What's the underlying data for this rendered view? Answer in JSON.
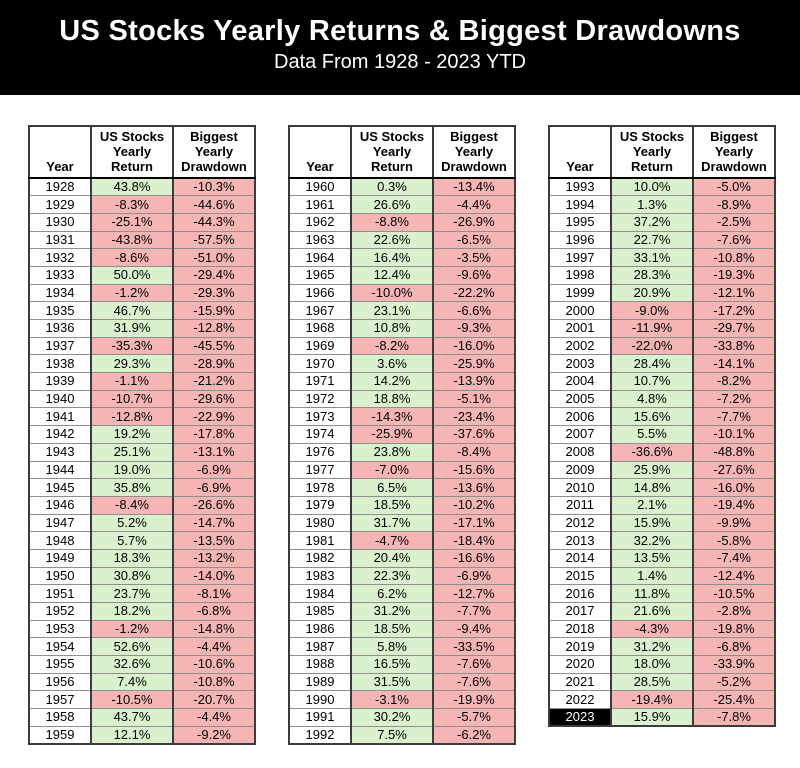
{
  "banner": {
    "title": "US Stocks Yearly Returns & Biggest Drawdowns",
    "subtitle": "Data From 1928 - 2023 YTD"
  },
  "colors": {
    "banner_bg": "#000000",
    "positive_bg": "#d9f2cd",
    "negative_bg": "#f5b5b5",
    "highlight_bg": "#000000",
    "highlight_fg": "#ffffff"
  },
  "chart_data": {
    "type": "table",
    "title": "US Stocks Yearly Returns & Biggest Drawdowns",
    "subtitle": "Data From 1928 - 2023 YTD",
    "columns": [
      "Year",
      "US Stocks Yearly Return",
      "Biggest Yearly Drawdown"
    ],
    "column_headers_multiline": [
      "Year",
      "US Stocks\nYearly\nReturn",
      "Biggest\nYearly\nDrawdown"
    ],
    "highlight_year": "2023",
    "tables": [
      {
        "rows": [
          [
            "1928",
            "43.8%",
            "-10.3%"
          ],
          [
            "1929",
            "-8.3%",
            "-44.6%"
          ],
          [
            "1930",
            "-25.1%",
            "-44.3%"
          ],
          [
            "1931",
            "-43.8%",
            "-57.5%"
          ],
          [
            "1932",
            "-8.6%",
            "-51.0%"
          ],
          [
            "1933",
            "50.0%",
            "-29.4%"
          ],
          [
            "1934",
            "-1.2%",
            "-29.3%"
          ],
          [
            "1935",
            "46.7%",
            "-15.9%"
          ],
          [
            "1936",
            "31.9%",
            "-12.8%"
          ],
          [
            "1937",
            "-35.3%",
            "-45.5%"
          ],
          [
            "1938",
            "29.3%",
            "-28.9%"
          ],
          [
            "1939",
            "-1.1%",
            "-21.2%"
          ],
          [
            "1940",
            "-10.7%",
            "-29.6%"
          ],
          [
            "1941",
            "-12.8%",
            "-22.9%"
          ],
          [
            "1942",
            "19.2%",
            "-17.8%"
          ],
          [
            "1943",
            "25.1%",
            "-13.1%"
          ],
          [
            "1944",
            "19.0%",
            "-6.9%"
          ],
          [
            "1945",
            "35.8%",
            "-6.9%"
          ],
          [
            "1946",
            "-8.4%",
            "-26.6%"
          ],
          [
            "1947",
            "5.2%",
            "-14.7%"
          ],
          [
            "1948",
            "5.7%",
            "-13.5%"
          ],
          [
            "1949",
            "18.3%",
            "-13.2%"
          ],
          [
            "1950",
            "30.8%",
            "-14.0%"
          ],
          [
            "1951",
            "23.7%",
            "-8.1%"
          ],
          [
            "1952",
            "18.2%",
            "-6.8%"
          ],
          [
            "1953",
            "-1.2%",
            "-14.8%"
          ],
          [
            "1954",
            "52.6%",
            "-4.4%"
          ],
          [
            "1955",
            "32.6%",
            "-10.6%"
          ],
          [
            "1956",
            "7.4%",
            "-10.8%"
          ],
          [
            "1957",
            "-10.5%",
            "-20.7%"
          ],
          [
            "1958",
            "43.7%",
            "-4.4%"
          ],
          [
            "1959",
            "12.1%",
            "-9.2%"
          ]
        ]
      },
      {
        "rows": [
          [
            "1960",
            "0.3%",
            "-13.4%"
          ],
          [
            "1961",
            "26.6%",
            "-4.4%"
          ],
          [
            "1962",
            "-8.8%",
            "-26.9%"
          ],
          [
            "1963",
            "22.6%",
            "-6.5%"
          ],
          [
            "1964",
            "16.4%",
            "-3.5%"
          ],
          [
            "1965",
            "12.4%",
            "-9.6%"
          ],
          [
            "1966",
            "-10.0%",
            "-22.2%"
          ],
          [
            "1967",
            "23.1%",
            "-6.6%"
          ],
          [
            "1968",
            "10.8%",
            "-9.3%"
          ],
          [
            "1969",
            "-8.2%",
            "-16.0%"
          ],
          [
            "1970",
            "3.6%",
            "-25.9%"
          ],
          [
            "1971",
            "14.2%",
            "-13.9%"
          ],
          [
            "1972",
            "18.8%",
            "-5.1%"
          ],
          [
            "1973",
            "-14.3%",
            "-23.4%"
          ],
          [
            "1974",
            "-25.9%",
            "-37.6%"
          ],
          [
            "1976",
            "23.8%",
            "-8.4%"
          ],
          [
            "1977",
            "-7.0%",
            "-15.6%"
          ],
          [
            "1978",
            "6.5%",
            "-13.6%"
          ],
          [
            "1979",
            "18.5%",
            "-10.2%"
          ],
          [
            "1980",
            "31.7%",
            "-17.1%"
          ],
          [
            "1981",
            "-4.7%",
            "-18.4%"
          ],
          [
            "1982",
            "20.4%",
            "-16.6%"
          ],
          [
            "1983",
            "22.3%",
            "-6.9%"
          ],
          [
            "1984",
            "6.2%",
            "-12.7%"
          ],
          [
            "1985",
            "31.2%",
            "-7.7%"
          ],
          [
            "1986",
            "18.5%",
            "-9.4%"
          ],
          [
            "1987",
            "5.8%",
            "-33.5%"
          ],
          [
            "1988",
            "16.5%",
            "-7.6%"
          ],
          [
            "1989",
            "31.5%",
            "-7.6%"
          ],
          [
            "1990",
            "-3.1%",
            "-19.9%"
          ],
          [
            "1991",
            "30.2%",
            "-5.7%"
          ],
          [
            "1992",
            "7.5%",
            "-6.2%"
          ]
        ]
      },
      {
        "rows": [
          [
            "1993",
            "10.0%",
            "-5.0%"
          ],
          [
            "1994",
            "1.3%",
            "-8.9%"
          ],
          [
            "1995",
            "37.2%",
            "-2.5%"
          ],
          [
            "1996",
            "22.7%",
            "-7.6%"
          ],
          [
            "1997",
            "33.1%",
            "-10.8%"
          ],
          [
            "1998",
            "28.3%",
            "-19.3%"
          ],
          [
            "1999",
            "20.9%",
            "-12.1%"
          ],
          [
            "2000",
            "-9.0%",
            "-17.2%"
          ],
          [
            "2001",
            "-11.9%",
            "-29.7%"
          ],
          [
            "2002",
            "-22.0%",
            "-33.8%"
          ],
          [
            "2003",
            "28.4%",
            "-14.1%"
          ],
          [
            "2004",
            "10.7%",
            "-8.2%"
          ],
          [
            "2005",
            "4.8%",
            "-7.2%"
          ],
          [
            "2006",
            "15.6%",
            "-7.7%"
          ],
          [
            "2007",
            "5.5%",
            "-10.1%"
          ],
          [
            "2008",
            "-36.6%",
            "-48.8%"
          ],
          [
            "2009",
            "25.9%",
            "-27.6%"
          ],
          [
            "2010",
            "14.8%",
            "-16.0%"
          ],
          [
            "2011",
            "2.1%",
            "-19.4%"
          ],
          [
            "2012",
            "15.9%",
            "-9.9%"
          ],
          [
            "2013",
            "32.2%",
            "-5.8%"
          ],
          [
            "2014",
            "13.5%",
            "-7.4%"
          ],
          [
            "2015",
            "1.4%",
            "-12.4%"
          ],
          [
            "2016",
            "11.8%",
            "-10.5%"
          ],
          [
            "2017",
            "21.6%",
            "-2.8%"
          ],
          [
            "2018",
            "-4.3%",
            "-19.8%"
          ],
          [
            "2019",
            "31.2%",
            "-6.8%"
          ],
          [
            "2020",
            "18.0%",
            "-33.9%"
          ],
          [
            "2021",
            "28.5%",
            "-5.2%"
          ],
          [
            "2022",
            "-19.4%",
            "-25.4%"
          ],
          [
            "2023",
            "15.9%",
            "-7.8%"
          ]
        ]
      }
    ]
  }
}
